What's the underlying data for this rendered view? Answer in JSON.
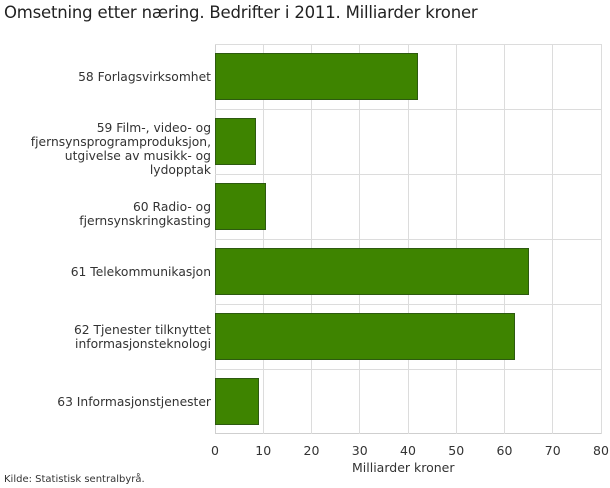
{
  "title": "Omsetning etter næring. Bedrifter i 2011. Milliarder kroner",
  "source": "Kilde: Statistisk sentralbyrå.",
  "colors": {
    "bar": "#3e8400",
    "bar_border": "#2d5a10",
    "grid": "#dcdcdc"
  },
  "chart_data": {
    "type": "bar",
    "orientation": "horizontal",
    "title": "Omsetning etter næring. Bedrifter i 2011. Milliarder kroner",
    "xlabel": "Milliarder kroner",
    "ylabel": "",
    "xlim": [
      0,
      80
    ],
    "xticks": [
      "0",
      "10",
      "20",
      "30",
      "40",
      "50",
      "60",
      "70",
      "80"
    ],
    "grid": true,
    "legend": null,
    "categories": [
      "58 Forlagsvirksomhet",
      "59 Film-, video- og fjernsynsprogramproduksjon, utgivelse av musikk- og lydopptak",
      "60 Radio- og fjernsynskringkasting",
      "61 Telekommunikasjon",
      "62 Tjenester tilknyttet informasjonsteknologi",
      "63 Informasjonstjenester"
    ],
    "category_lines": [
      [
        "58 Forlagsvirksomhet"
      ],
      [
        "59 Film-, video- og",
        "fjernsynsprogramproduksjon,",
        "utgivelse av musikk- og lydopptak"
      ],
      [
        "60 Radio- og fjernsynskringkasting"
      ],
      [
        "61 Telekommunikasjon"
      ],
      [
        "62 Tjenester tilknyttet",
        "informasjonsteknologi"
      ],
      [
        "63 Informasjonstjenester"
      ]
    ],
    "values": [
      42.1,
      8.5,
      10.5,
      65.1,
      62.2,
      9.2
    ]
  }
}
